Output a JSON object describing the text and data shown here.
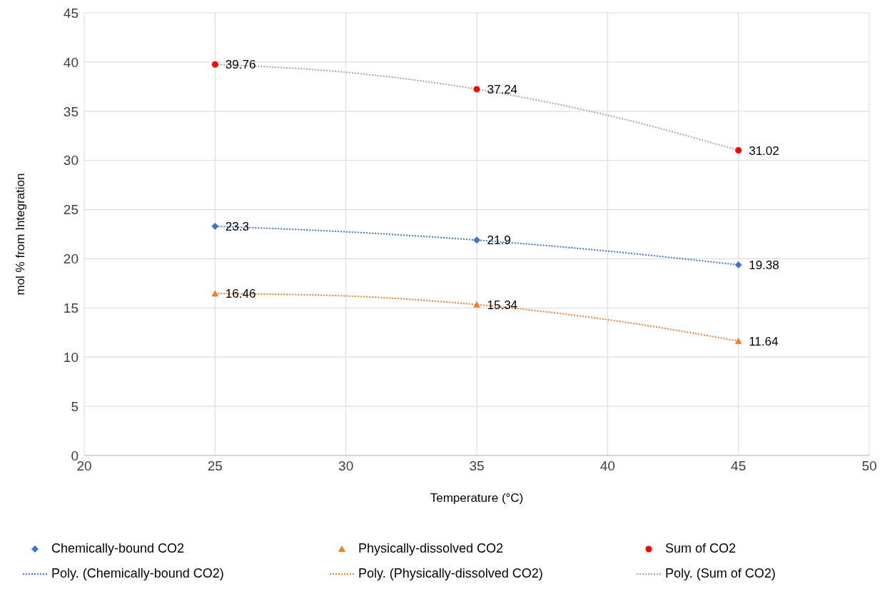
{
  "chart_data": {
    "type": "scatter",
    "xlabel": "Temperature (°C)",
    "ylabel": "mol % from Integration",
    "xlim": [
      20,
      50
    ],
    "xticks": [
      20,
      25,
      30,
      35,
      40,
      45,
      50
    ],
    "ylim": [
      0,
      45
    ],
    "yticks": [
      0,
      5,
      10,
      15,
      20,
      25,
      30,
      35,
      40,
      45
    ],
    "grid": true,
    "legend": "bottom",
    "series": [
      {
        "name": "Chemically-bound CO2",
        "marker": "diamond",
        "color": "#4472c4",
        "x": [
          25,
          35,
          45
        ],
        "values": [
          23.3,
          21.9,
          19.38
        ],
        "value_labels": [
          "23.3",
          "21.9",
          "19.38"
        ]
      },
      {
        "name": "Physically-dissolved CO2",
        "marker": "triangle",
        "color": "#ed7d31",
        "x": [
          25,
          35,
          45
        ],
        "values": [
          16.46,
          15.34,
          11.64
        ],
        "value_labels": [
          "16.46",
          "15.34",
          "11.64"
        ]
      },
      {
        "name": "Sum of CO2",
        "marker": "circle",
        "color": "#ff0000",
        "x": [
          25,
          35,
          45
        ],
        "values": [
          39.76,
          37.24,
          31.02
        ],
        "value_labels": [
          "39.76",
          "37.24",
          "31.02"
        ]
      },
      {
        "name": "Poly. (Chemically-bound CO2)",
        "type": "line",
        "marker": "none",
        "line_style": "dotted",
        "color": "#4472c4",
        "x": [
          25,
          30,
          35,
          40,
          45
        ],
        "values": [
          23.3,
          22.74,
          21.9,
          20.78,
          19.38
        ]
      },
      {
        "name": "Poly. (Physically-dissolved CO2)",
        "type": "line",
        "marker": "none",
        "line_style": "dotted",
        "color": "#ed7d31",
        "x": [
          25,
          30,
          35,
          40,
          45
        ],
        "values": [
          16.46,
          16.22,
          15.34,
          13.81,
          11.64
        ]
      },
      {
        "name": "Poly. (Sum of CO2)",
        "type": "line",
        "marker": "none",
        "line_style": "dotted",
        "color": "#a5a5a5",
        "x": [
          25,
          30,
          35,
          40,
          45
        ],
        "values": [
          39.76,
          38.96,
          37.24,
          34.59,
          31.02
        ]
      }
    ]
  }
}
